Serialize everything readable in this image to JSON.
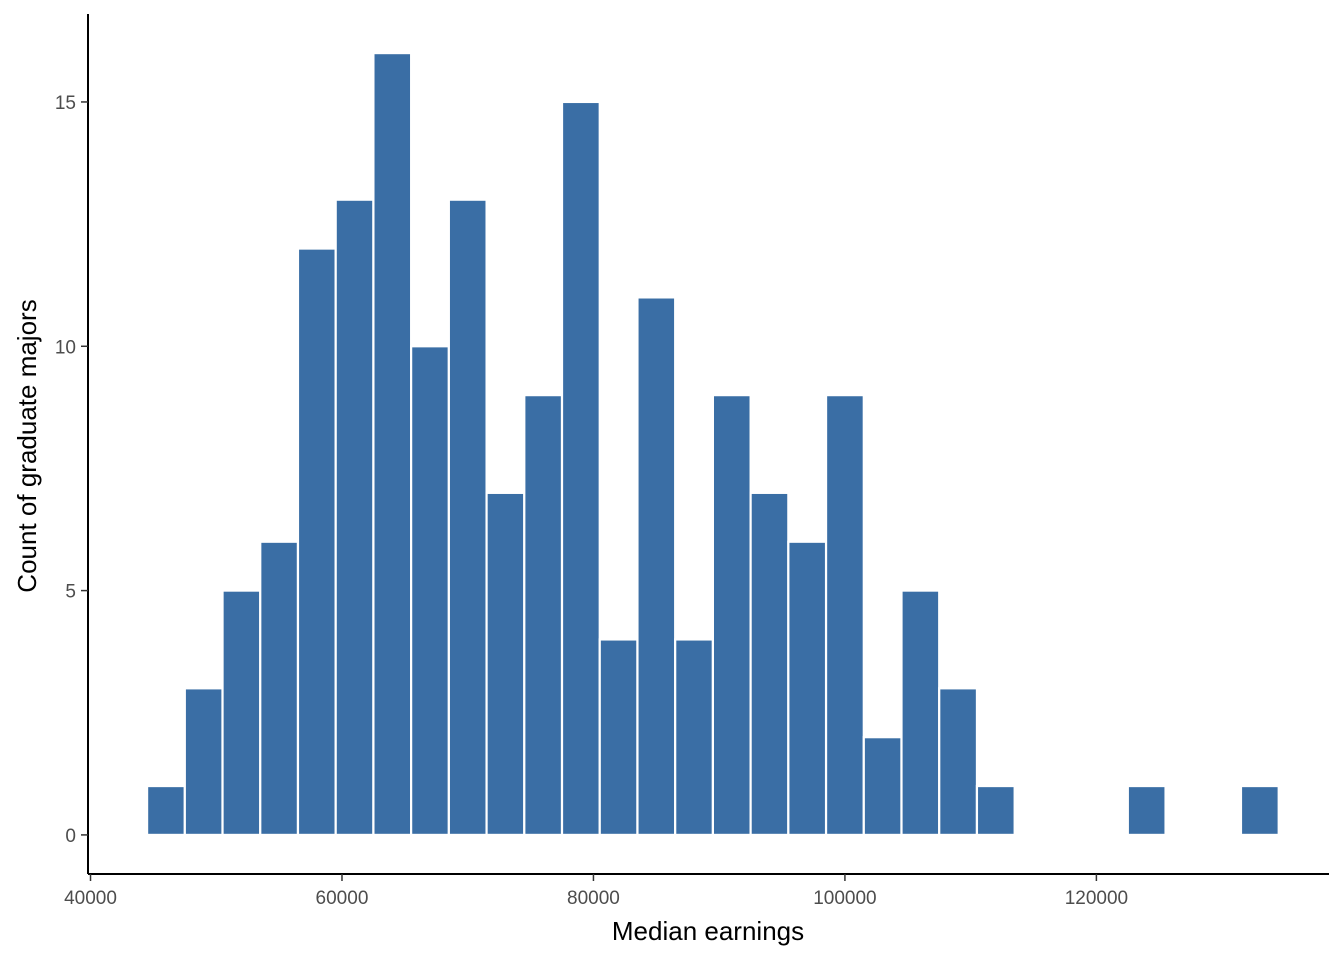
{
  "chart_data": {
    "type": "histogram",
    "title": "",
    "xlabel": "Median earnings",
    "ylabel": "Count of graduate majors",
    "bin_width": 3000,
    "bin_start": 44500,
    "xlim": [
      39800,
      138500
    ],
    "ylim": [
      -0.8,
      16.8
    ],
    "x_ticks": [
      40000,
      60000,
      80000,
      100000,
      120000
    ],
    "y_ticks": [
      0,
      5,
      10,
      15
    ],
    "bins": [
      {
        "x_start": 44500,
        "x_end": 47500,
        "count": 1
      },
      {
        "x_start": 47500,
        "x_end": 50500,
        "count": 3
      },
      {
        "x_start": 50500,
        "x_end": 53500,
        "count": 5
      },
      {
        "x_start": 53500,
        "x_end": 56500,
        "count": 6
      },
      {
        "x_start": 56500,
        "x_end": 59500,
        "count": 12
      },
      {
        "x_start": 59500,
        "x_end": 62500,
        "count": 13
      },
      {
        "x_start": 62500,
        "x_end": 65500,
        "count": 16
      },
      {
        "x_start": 65500,
        "x_end": 68500,
        "count": 10
      },
      {
        "x_start": 68500,
        "x_end": 71500,
        "count": 13
      },
      {
        "x_start": 71500,
        "x_end": 74500,
        "count": 7
      },
      {
        "x_start": 74500,
        "x_end": 77500,
        "count": 9
      },
      {
        "x_start": 77500,
        "x_end": 80500,
        "count": 15
      },
      {
        "x_start": 80500,
        "x_end": 83500,
        "count": 4
      },
      {
        "x_start": 83500,
        "x_end": 86500,
        "count": 11
      },
      {
        "x_start": 86500,
        "x_end": 89500,
        "count": 4
      },
      {
        "x_start": 89500,
        "x_end": 92500,
        "count": 9
      },
      {
        "x_start": 92500,
        "x_end": 95500,
        "count": 7
      },
      {
        "x_start": 95500,
        "x_end": 98500,
        "count": 6
      },
      {
        "x_start": 98500,
        "x_end": 101500,
        "count": 9
      },
      {
        "x_start": 101500,
        "x_end": 104500,
        "count": 2
      },
      {
        "x_start": 104500,
        "x_end": 107500,
        "count": 5
      },
      {
        "x_start": 107500,
        "x_end": 110500,
        "count": 3
      },
      {
        "x_start": 110500,
        "x_end": 113500,
        "count": 1
      },
      {
        "x_start": 113500,
        "x_end": 116500,
        "count": 0
      },
      {
        "x_start": 116500,
        "x_end": 119500,
        "count": 0
      },
      {
        "x_start": 119500,
        "x_end": 122500,
        "count": 0
      },
      {
        "x_start": 122500,
        "x_end": 125500,
        "count": 1
      },
      {
        "x_start": 125500,
        "x_end": 128500,
        "count": 0
      },
      {
        "x_start": 128500,
        "x_end": 131500,
        "count": 0
      },
      {
        "x_start": 131500,
        "x_end": 134500,
        "count": 1
      }
    ],
    "grid": false,
    "legend": "none",
    "colors": {
      "bar_fill": "#3A6EA5",
      "bar_stroke": "#ffffff",
      "axis": "#000000",
      "tick_label": "#4D4D4D",
      "axis_title": "#000000"
    }
  }
}
